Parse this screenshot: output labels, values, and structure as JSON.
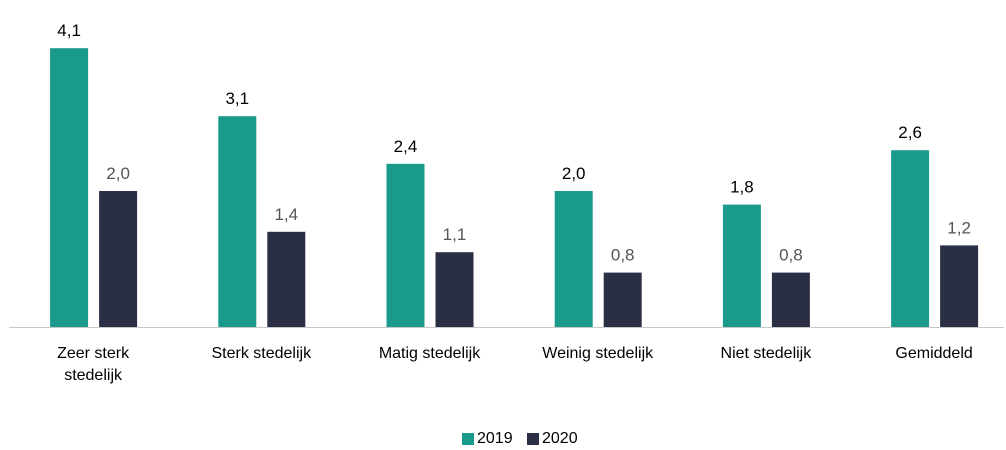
{
  "chart_data": {
    "type": "bar",
    "categories": [
      "Zeer sterk\nstedelijk",
      "Sterk stedelijk",
      "Matig stedelijk",
      "Weinig stedelijk",
      "Niet stedelijk",
      "Gemiddeld"
    ],
    "series": [
      {
        "name": "2019",
        "color": "#1a9a8a",
        "values": [
          4.1,
          3.1,
          2.4,
          2.0,
          1.8,
          2.6
        ],
        "value_labels": [
          "4,1",
          "3,1",
          "2,4",
          "2,0",
          "1,8",
          "2,6"
        ]
      },
      {
        "name": "2020",
        "color": "#2b2f45",
        "values": [
          2.0,
          1.4,
          1.1,
          0.8,
          0.8,
          1.2
        ],
        "value_labels": [
          "2,0",
          "1,4",
          "1,1",
          "0,8",
          "0,8",
          "1,2"
        ]
      }
    ],
    "ylim": [
      0,
      4.5
    ],
    "legend": "bottom"
  }
}
